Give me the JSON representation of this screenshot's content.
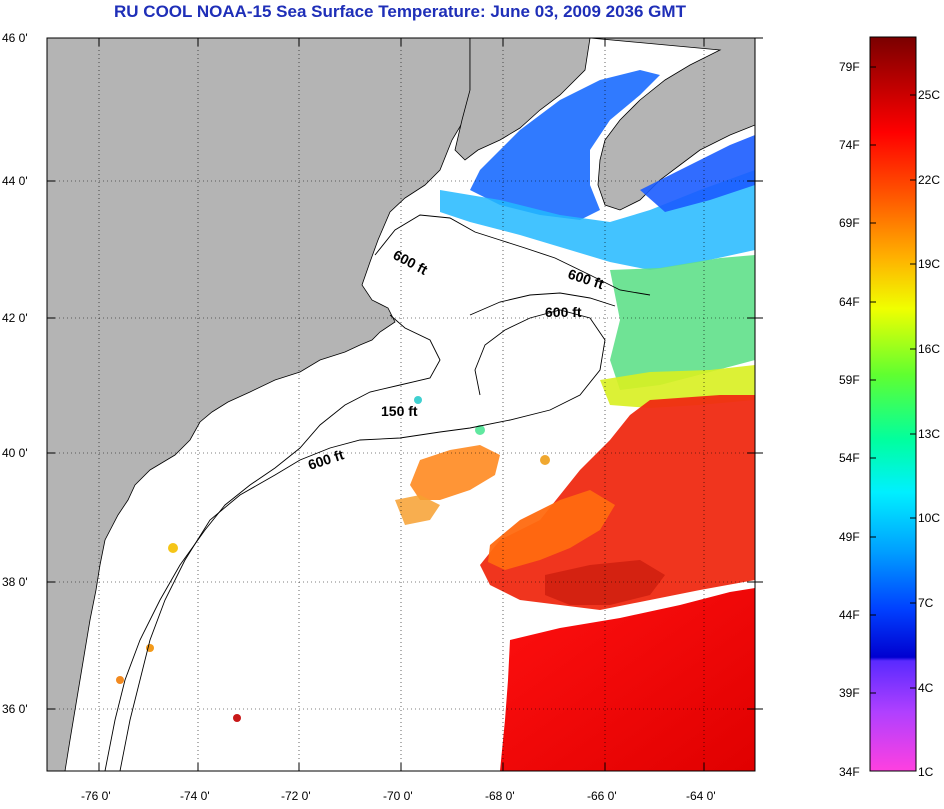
{
  "title": "RU COOL  NOAA-15  Sea Surface Temperature:  June 03, 2009 2036 GMT",
  "map": {
    "lon_range": [
      -77,
      -63
    ],
    "lat_range": [
      35,
      46
    ],
    "lat_ticks": [
      "46 0'",
      "44 0'",
      "42 0'",
      "40 0'",
      "38 0'",
      "36 0'"
    ],
    "lon_ticks": [
      "-76 0'",
      "-74 0'",
      "-72 0'",
      "-70 0'",
      "-68 0'",
      "-66 0'",
      "-64 0'"
    ],
    "contour_labels": [
      "600 ft",
      "600 ft",
      "600 ft",
      "150 ft",
      "600 ft"
    ],
    "colors": {
      "land": "#b4b4b4",
      "ocean_no_data": "#ffffff"
    }
  },
  "colorbar": {
    "fahrenheit_labels": [
      "79F",
      "74F",
      "69F",
      "64F",
      "59F",
      "54F",
      "49F",
      "44F",
      "39F",
      "34F"
    ],
    "celsius_labels": [
      "25C",
      "22C",
      "19C",
      "16C",
      "13C",
      "10C",
      "7C",
      "4C",
      "1C"
    ],
    "gradient_colors": [
      "#7a0000",
      "#d00000",
      "#ff2000",
      "#ff7a00",
      "#ffd000",
      "#e0ff00",
      "#50ff30",
      "#00ffb0",
      "#00e0ff",
      "#0090ff",
      "#0030ff",
      "#0000c8",
      "#8a50ff",
      "#ff40e0"
    ]
  }
}
